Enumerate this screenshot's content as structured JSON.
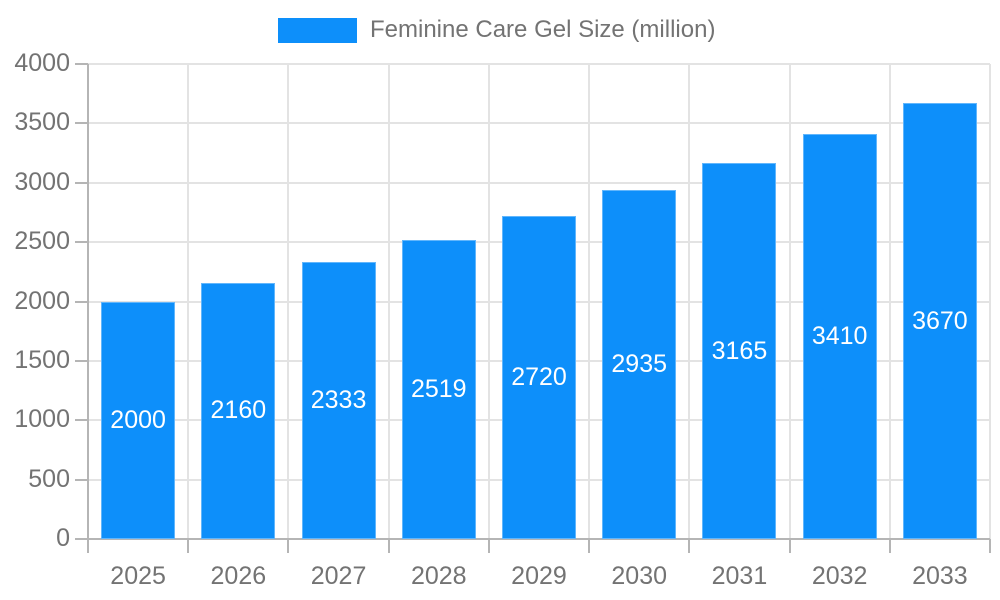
{
  "legend": {
    "label": "Feminine Care Gel Size (million)"
  },
  "chart_data": {
    "type": "bar",
    "title": "Feminine Care Gel Size (million)",
    "categories": [
      "2025",
      "2026",
      "2027",
      "2028",
      "2029",
      "2030",
      "2031",
      "2032",
      "2033"
    ],
    "values": [
      2000,
      2160,
      2333,
      2519,
      2720,
      2935,
      3165,
      3410,
      3670
    ],
    "xlabel": "",
    "ylabel": "",
    "ylim": [
      0,
      4000
    ],
    "yticks": [
      0,
      500,
      1000,
      1500,
      2000,
      2500,
      3000,
      3500,
      4000
    ],
    "grid": true,
    "legend_position": "top",
    "bar_labels_inside": true,
    "colors": {
      "bar": "#0d8ffa",
      "bar_label": "#ffffff",
      "grid": "#e3e3e3",
      "axis": "#b5b5b5",
      "text": "#737373"
    }
  }
}
